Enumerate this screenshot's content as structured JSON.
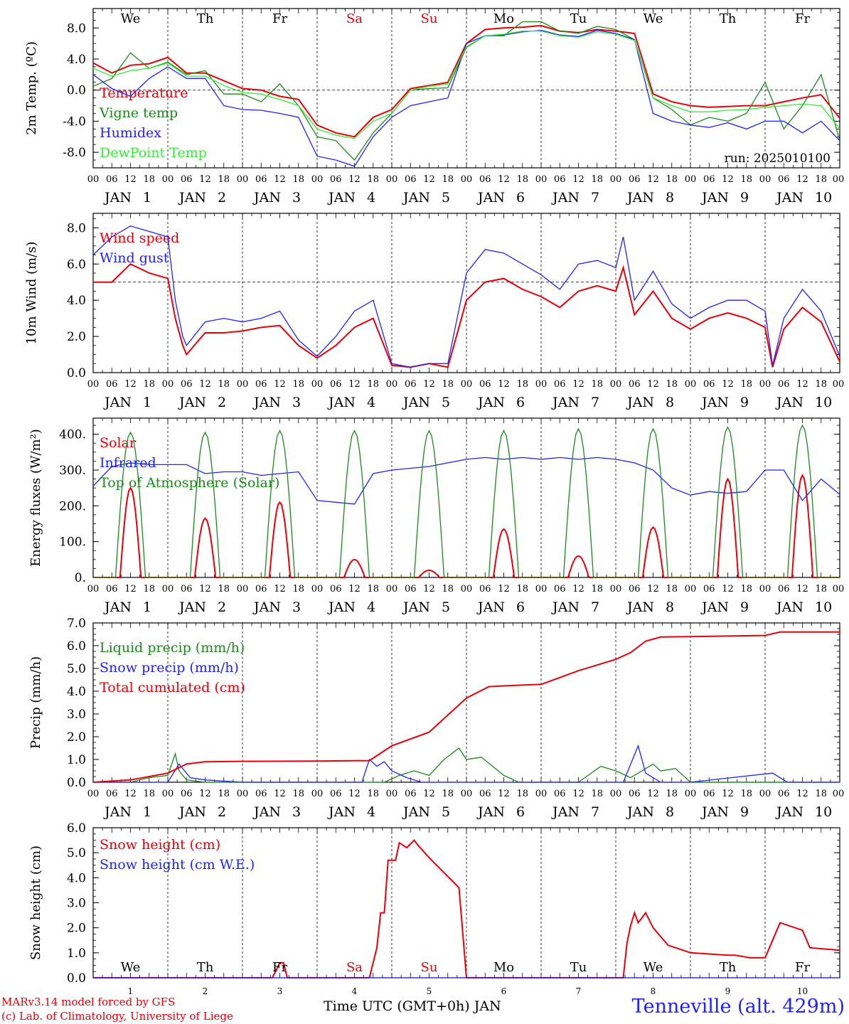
{
  "footer": {
    "credit_line1": "MARv3.14 model forced by GFS",
    "credit_line2": "(c) Lab. of Climatology, University of Liege",
    "xlabel": "Time UTC (GMT+0h) JAN",
    "station": "Tenneville (alt. 429m)"
  },
  "colors": {
    "red": "#e8000b",
    "darkgreen": "#1a8a1a",
    "blue": "#2222ff",
    "lightgreen": "#33ee33",
    "axis": "#000000"
  },
  "x_axis": {
    "hour_ticks": [
      "00",
      "06",
      "12",
      "18"
    ],
    "day_labels": [
      "JAN 1",
      "JAN 2",
      "JAN 3",
      "JAN 4",
      "JAN 5",
      "JAN 6",
      "JAN 7",
      "JAN 8",
      "JAN 9",
      "JAN 10"
    ],
    "weekdays": [
      "We",
      "Th",
      "Fr",
      "Sa",
      "Su",
      "Mo",
      "Tu",
      "We",
      "Th",
      "Fr"
    ],
    "weekend_days": [
      "Sa",
      "Su"
    ],
    "bottom_day_numbers": [
      "1",
      "2",
      "3",
      "4",
      "5",
      "6",
      "7",
      "8",
      "9",
      "10"
    ],
    "range_days": [
      0,
      10
    ]
  },
  "chart_data": [
    {
      "type": "line",
      "ylabel": "2m Temp. (ºC)",
      "yticks": [
        "8.0",
        "4.0",
        "0.0",
        "-4.0",
        "-8.0"
      ],
      "ylim": [
        -10,
        10.5
      ],
      "ref_line": 0,
      "annotation": "run: 2025010100",
      "series": [
        {
          "name": "Temperature",
          "color": "red",
          "x": [
            0,
            0.25,
            0.5,
            0.75,
            1,
            1.25,
            1.5,
            1.75,
            2,
            2.25,
            2.5,
            2.75,
            3,
            3.25,
            3.5,
            3.75,
            4,
            4.25,
            4.5,
            4.75,
            5,
            5.25,
            5.5,
            5.75,
            6,
            6.25,
            6.5,
            6.75,
            7,
            7.25,
            7.5,
            7.75,
            8,
            8.25,
            8.5,
            8.75,
            9,
            9.25,
            9.5,
            9.75,
            10
          ],
          "y": [
            3.5,
            2.2,
            3.2,
            3.4,
            4.2,
            2.2,
            2.2,
            1.2,
            0.2,
            0,
            -0.8,
            -1.2,
            -4.5,
            -5.5,
            -6,
            -3.5,
            -2.5,
            0.2,
            0.6,
            1,
            6,
            7.8,
            8,
            8.1,
            8.3,
            7.6,
            7.4,
            7.8,
            7.6,
            7.3,
            -0.5,
            -1.5,
            -2,
            -2.2,
            -2.1,
            -2,
            -2,
            -1.5,
            -1,
            -0.6,
            -3.6
          ]
        },
        {
          "name": "Vigne temp",
          "color": "darkgreen",
          "x": [
            0,
            0.25,
            0.5,
            0.75,
            1,
            1.25,
            1.5,
            1.75,
            2,
            2.25,
            2.5,
            2.75,
            3,
            3.25,
            3.5,
            3.75,
            4,
            4.25,
            4.5,
            4.75,
            5,
            5.25,
            5.5,
            5.75,
            6,
            6.25,
            6.5,
            6.75,
            7,
            7.25,
            7.5,
            7.75,
            8,
            8.25,
            8.5,
            8.75,
            9,
            9.25,
            9.5,
            9.75,
            10
          ],
          "y": [
            0.5,
            1.5,
            4.8,
            2.8,
            3.6,
            2,
            2.5,
            -0.5,
            -0.5,
            -1.5,
            0.8,
            -2,
            -6,
            -6.5,
            -9,
            -5.5,
            -3,
            0,
            0.2,
            0.3,
            5.5,
            7,
            7,
            8.8,
            8.8,
            7.6,
            7.3,
            8.2,
            7.8,
            6.5,
            -1,
            -2.5,
            -4.5,
            -3.5,
            -4,
            -3,
            1,
            -5,
            -2,
            2,
            -6.5
          ]
        },
        {
          "name": "Humidex",
          "color": "blue",
          "x": [
            0,
            0.25,
            0.5,
            0.75,
            1,
            1.25,
            1.5,
            1.75,
            2,
            2.25,
            2.5,
            2.75,
            3,
            3.25,
            3.5,
            3.75,
            4,
            4.25,
            4.5,
            4.75,
            5,
            5.25,
            5.5,
            5.75,
            6,
            6.25,
            6.5,
            6.75,
            7,
            7.25,
            7.5,
            7.75,
            8,
            8.25,
            8.5,
            8.75,
            9,
            9.25,
            9.5,
            9.75,
            10
          ],
          "y": [
            2,
            0.2,
            -0.8,
            1.5,
            3,
            1.5,
            1.5,
            -2,
            -2.5,
            -2.6,
            -3,
            -3.5,
            -8.5,
            -9,
            -9.8,
            -6,
            -3.5,
            -2,
            -1.5,
            -1,
            6,
            7,
            7.1,
            7.5,
            7.7,
            7.1,
            6.9,
            7.7,
            7.3,
            6.5,
            -3,
            -4,
            -4.5,
            -4.8,
            -4.2,
            -5,
            -4,
            -4,
            -5.5,
            -4,
            -6.5
          ]
        },
        {
          "name": "DewPoint Temp",
          "color": "lightgreen",
          "x": [
            0,
            0.25,
            0.5,
            0.75,
            1,
            1.25,
            1.5,
            1.75,
            2,
            2.25,
            2.5,
            2.75,
            3,
            3.25,
            3.5,
            3.75,
            4,
            4.25,
            4.5,
            4.75,
            5,
            5.25,
            5.5,
            5.75,
            6,
            6.25,
            6.5,
            6.75,
            7,
            7.25,
            7.5,
            7.75,
            8,
            8.25,
            8.5,
            8.75,
            9,
            9.25,
            9.5,
            9.75,
            10
          ],
          "y": [
            2.8,
            1.8,
            2.5,
            2.8,
            3.5,
            1.8,
            1.8,
            0.6,
            -0.3,
            -0.5,
            -1.2,
            -2,
            -5,
            -5.8,
            -6.2,
            -4,
            -3,
            0,
            0.5,
            0.8,
            5.6,
            7,
            7.2,
            7.6,
            7.6,
            7,
            6.8,
            7.5,
            7.2,
            6.4,
            -1,
            -2,
            -2.8,
            -2.8,
            -2.6,
            -2.5,
            -2.2,
            -2,
            -1.8,
            -2,
            -5
          ]
        }
      ]
    },
    {
      "type": "line",
      "ylabel": "10m Wind (m/s)",
      "yticks": [
        "8.0",
        "6.0",
        "4.0",
        "2.0",
        "0.0"
      ],
      "ylim": [
        0,
        8.8
      ],
      "ref_line": 5,
      "series": [
        {
          "name": "Wind speed",
          "color": "red",
          "x": [
            0,
            0.25,
            0.5,
            0.75,
            1,
            1.1,
            1.2,
            1.25,
            1.5,
            1.75,
            2,
            2.25,
            2.5,
            2.75,
            3,
            3.25,
            3.5,
            3.75,
            4,
            4.25,
            4.5,
            4.75,
            5,
            5.25,
            5.5,
            5.75,
            6,
            6.25,
            6.5,
            6.75,
            7,
            7.1,
            7.25,
            7.5,
            7.75,
            8,
            8.25,
            8.5,
            8.75,
            9,
            9.1,
            9.25,
            9.5,
            9.75,
            10
          ],
          "y": [
            5,
            5,
            6,
            5.5,
            5.2,
            3,
            1.5,
            1,
            2.2,
            2.2,
            2.3,
            2.5,
            2.6,
            1.5,
            0.8,
            1.5,
            2.5,
            3,
            0.4,
            0.3,
            0.5,
            0.3,
            4,
            5,
            5.2,
            4.6,
            4.2,
            3.6,
            4.5,
            4.8,
            4.5,
            5.8,
            3.2,
            4.5,
            3,
            2.4,
            3,
            3.3,
            3,
            2.5,
            0.3,
            2.4,
            3.6,
            2.8,
            0.6
          ]
        },
        {
          "name": "Wind gust",
          "color": "blue",
          "x": [
            0,
            0.25,
            0.5,
            0.75,
            1,
            1.1,
            1.2,
            1.25,
            1.5,
            1.75,
            2,
            2.25,
            2.5,
            2.75,
            3,
            3.25,
            3.5,
            3.75,
            4,
            4.25,
            4.5,
            4.75,
            5,
            5.25,
            5.5,
            5.75,
            6,
            6.25,
            6.5,
            6.75,
            7,
            7.1,
            7.25,
            7.5,
            7.75,
            8,
            8.25,
            8.5,
            8.75,
            9,
            9.1,
            9.25,
            9.5,
            9.75,
            10
          ],
          "y": [
            6.5,
            7.5,
            8.1,
            7.8,
            7.5,
            4,
            2,
            1.5,
            2.8,
            3,
            2.8,
            3,
            3.4,
            1.8,
            0.9,
            2,
            3.4,
            4,
            0.5,
            0.3,
            0.5,
            0.5,
            5.5,
            6.8,
            6.6,
            6,
            5.4,
            4.6,
            6,
            6.2,
            5.8,
            7.5,
            4,
            5.6,
            3.8,
            3,
            3.6,
            4,
            4,
            3.4,
            0.4,
            3,
            4.6,
            3.4,
            0.9
          ]
        }
      ]
    },
    {
      "type": "line",
      "ylabel": "Energy fluxes (W/m²)",
      "yticks": [
        "400.",
        "300.",
        "200.",
        "100.",
        "0."
      ],
      "ylim": [
        0,
        445
      ],
      "series": [
        {
          "name": "Solar",
          "color": "red",
          "peaks": [
            250,
            165,
            210,
            50,
            20,
            135,
            60,
            140,
            275,
            285
          ],
          "peak_hour": 12
        },
        {
          "name": "Infrared",
          "color": "blue",
          "x": [
            0,
            0.25,
            0.5,
            0.75,
            1,
            1.25,
            1.5,
            1.75,
            2,
            2.25,
            2.5,
            2.75,
            3,
            3.25,
            3.5,
            3.75,
            4,
            4.25,
            4.5,
            4.75,
            5,
            5.25,
            5.5,
            5.75,
            6,
            6.25,
            6.5,
            6.75,
            7,
            7.25,
            7.5,
            7.75,
            8,
            8.25,
            8.5,
            8.75,
            9,
            9.25,
            9.5,
            9.75,
            10
          ],
          "y": [
            255,
            310,
            320,
            315,
            315,
            315,
            290,
            295,
            295,
            285,
            290,
            295,
            215,
            210,
            205,
            290,
            300,
            305,
            310,
            320,
            330,
            335,
            330,
            335,
            330,
            335,
            330,
            335,
            330,
            320,
            300,
            250,
            230,
            240,
            235,
            240,
            300,
            300,
            215,
            275,
            232
          ]
        },
        {
          "name": "Top of Atmosphere (Solar)",
          "color": "darkgreen",
          "peaks": [
            405,
            405,
            410,
            410,
            410,
            410,
            415,
            415,
            420,
            425
          ],
          "peak_hour": 12
        }
      ]
    },
    {
      "type": "line",
      "ylabel": "Precip (mm/h)",
      "yticks": [
        "7.0",
        "6.0",
        "5.0",
        "4.0",
        "3.0",
        "2.0",
        "1.0",
        "0.0"
      ],
      "ylim": [
        0,
        7
      ],
      "series": [
        {
          "name": "Liquid precip (mm/h)",
          "color": "darkgreen",
          "x": [
            0,
            0.5,
            0.75,
            1,
            1.1,
            1.15,
            1.25,
            1.5,
            2,
            3,
            3.9,
            4.1,
            4.3,
            4.5,
            4.7,
            4.9,
            5,
            5.2,
            5.5,
            5.7,
            6,
            6.5,
            6.8,
            7,
            7.2,
            7.5,
            7.6,
            7.8,
            8,
            9,
            10
          ],
          "y": [
            0,
            0,
            0.2,
            0.3,
            1.25,
            0.5,
            0.1,
            0,
            0,
            0,
            0,
            0.3,
            0.5,
            0.3,
            1,
            1.5,
            1,
            1.1,
            0.3,
            0,
            0,
            0,
            0.7,
            0.5,
            0.2,
            0.8,
            0.5,
            0.6,
            0,
            0,
            0
          ]
        },
        {
          "name": "Snow precip (mm/h)",
          "color": "blue",
          "x": [
            0,
            1,
            1.15,
            1.3,
            1.5,
            2,
            3.6,
            3.7,
            3.8,
            3.9,
            4,
            4.2,
            4.4,
            7.1,
            7.2,
            7.3,
            7.4,
            7.6,
            8,
            9.1,
            9.2,
            9.3,
            10
          ],
          "y": [
            0,
            0,
            0.8,
            0.2,
            0.1,
            0,
            0,
            1,
            0.7,
            0.9,
            0.5,
            0.2,
            0,
            0,
            0.8,
            1.6,
            0.4,
            0,
            0,
            0.4,
            0.2,
            0,
            0
          ]
        },
        {
          "name": "Total cumulated (cm)",
          "color": "red",
          "x": [
            0,
            0.5,
            1,
            1.25,
            1.5,
            2,
            3,
            3.7,
            4,
            4.5,
            5,
            5.3,
            5.6,
            6,
            6.5,
            7,
            7.2,
            7.4,
            7.6,
            8,
            9,
            9.2,
            10
          ],
          "y": [
            0,
            0.1,
            0.4,
            0.8,
            0.9,
            0.92,
            0.93,
            0.95,
            1.6,
            2.2,
            3.7,
            4.2,
            4.25,
            4.3,
            4.9,
            5.4,
            5.7,
            6.2,
            6.38,
            6.4,
            6.45,
            6.6,
            6.6
          ]
        }
      ]
    },
    {
      "type": "line",
      "ylabel": "Snow height (cm)",
      "yticks": [
        "6.0",
        "5.0",
        "4.0",
        "3.0",
        "2.0",
        "1.0",
        "0.0"
      ],
      "ylim": [
        0,
        6
      ],
      "series": [
        {
          "name": "Snow height (cm)",
          "color": "red",
          "x": [
            0,
            2.4,
            2.5,
            2.55,
            2.6,
            3.7,
            3.8,
            3.85,
            3.9,
            3.95,
            4,
            4.05,
            4.1,
            4.2,
            4.3,
            4.35,
            4.5,
            4.7,
            4.9,
            5,
            5.1,
            5.2,
            7.1,
            7.15,
            7.2,
            7.25,
            7.3,
            7.4,
            7.5,
            7.7,
            8,
            8.5,
            8.6,
            8.8,
            9,
            9.1,
            9.2,
            9.5,
            9.6,
            10
          ],
          "y": [
            0,
            0,
            0.6,
            0.6,
            0,
            0,
            1.2,
            2.6,
            2.6,
            4.7,
            4.7,
            4.7,
            5.4,
            5.2,
            5.5,
            5.3,
            4.8,
            4.2,
            3.6,
            0,
            0,
            0,
            0,
            1.4,
            2.1,
            2.6,
            2.2,
            2.6,
            2.0,
            1.3,
            1.0,
            0.9,
            0.9,
            0.8,
            0.8,
            1.5,
            2.2,
            1.9,
            1.2,
            1.1
          ]
        },
        {
          "name": "Snow height (cm W.E.)",
          "color": "blue",
          "x": [
            0,
            10
          ],
          "y": [
            0,
            0
          ]
        }
      ]
    }
  ]
}
